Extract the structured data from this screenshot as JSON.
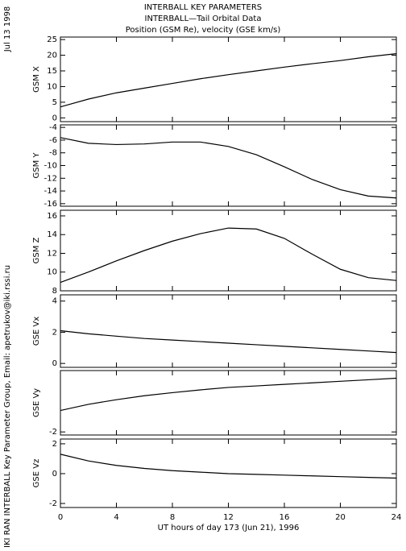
{
  "header": {
    "lines": [
      "INTERBALL KEY PARAMETERS",
      "INTERBALL—Tail Orbital Data",
      "Position (GSM Re), velocity (GSE km/s)"
    ]
  },
  "date_stamp": "Jul 13 1998",
  "credit": "IKI RAN INTERBALL Key Parameter Group, Email: apetrukov@iki.rssi.ru",
  "chart_data": [
    {
      "type": "line",
      "ylabel": "GSM X",
      "x": [
        0,
        2,
        4,
        6,
        8,
        10,
        12,
        14,
        16,
        18,
        20,
        22,
        24
      ],
      "series": [
        {
          "color": "#000000",
          "values": [
            3.5,
            6,
            8,
            9.5,
            11,
            12.5,
            13.8,
            15,
            16.2,
            17.3,
            18.3,
            19.5,
            20.5
          ]
        }
      ],
      "xlim": [
        0,
        24
      ],
      "xticks": [
        0,
        4,
        8,
        12,
        16,
        20,
        24
      ],
      "ylim": [
        -1.2,
        25.8
      ],
      "yticks": [
        0,
        5,
        10,
        15,
        20,
        25
      ]
    },
    {
      "type": "line",
      "ylabel": "GSM Y",
      "x": [
        0,
        2,
        4,
        6,
        8,
        10,
        12,
        14,
        16,
        18,
        20,
        22,
        24
      ],
      "series": [
        {
          "color": "#000000",
          "values": [
            -5.6,
            -6.5,
            -6.7,
            -6.6,
            -6.3,
            -6.3,
            -7,
            -8.3,
            -10.2,
            -12.2,
            -13.8,
            -14.8,
            -15.1
          ]
        }
      ],
      "xlim": [
        0,
        24
      ],
      "xticks": [
        0,
        4,
        8,
        12,
        16,
        20,
        24
      ],
      "ylim": [
        -16.4,
        -3.6
      ],
      "yticks": [
        -16,
        -14,
        -12,
        -10,
        -8,
        -6,
        -4
      ]
    },
    {
      "type": "line",
      "ylabel": "GSM Z",
      "x": [
        0,
        2,
        4,
        6,
        8,
        10,
        12,
        14,
        16,
        18,
        20,
        22,
        24
      ],
      "series": [
        {
          "color": "#000000",
          "values": [
            8.9,
            10,
            11.2,
            12.3,
            13.3,
            14.1,
            14.7,
            14.6,
            13.6,
            11.9,
            10.3,
            9.4,
            9.1
          ]
        }
      ],
      "xlim": [
        0,
        24
      ],
      "xticks": [
        0,
        4,
        8,
        12,
        16,
        20,
        24
      ],
      "ylim": [
        8,
        16.6
      ],
      "yticks": [
        8,
        10,
        12,
        14,
        16
      ]
    },
    {
      "type": "line",
      "ylabel": "GSE Vx",
      "x": [
        0,
        2,
        4,
        6,
        8,
        10,
        12,
        14,
        16,
        18,
        20,
        22,
        24
      ],
      "series": [
        {
          "color": "#000000",
          "values": [
            2.1,
            1.9,
            1.75,
            1.6,
            1.5,
            1.4,
            1.3,
            1.2,
            1.1,
            1.0,
            0.9,
            0.8,
            0.7
          ]
        }
      ],
      "xlim": [
        0,
        24
      ],
      "xticks": [
        0,
        4,
        8,
        12,
        16,
        20,
        24
      ],
      "ylim": [
        -0.25,
        4.4
      ],
      "yticks": [
        0,
        2,
        4
      ]
    },
    {
      "type": "line",
      "ylabel": "GSE Vy",
      "x": [
        0,
        2,
        4,
        6,
        8,
        10,
        12,
        14,
        16,
        18,
        20,
        22,
        24
      ],
      "series": [
        {
          "color": "#000000",
          "values": [
            -1.3,
            -1.1,
            -0.95,
            -0.82,
            -0.72,
            -0.63,
            -0.55,
            -0.5,
            -0.45,
            -0.4,
            -0.35,
            -0.3,
            -0.25
          ]
        }
      ],
      "xlim": [
        0,
        24
      ],
      "xticks": [
        0,
        4,
        8,
        12,
        16,
        20,
        24
      ],
      "ylim": [
        -2.1,
        0
      ],
      "yticks": [
        -2
      ]
    },
    {
      "type": "line",
      "ylabel": "GSE Vz",
      "xlabel": "UT hours of day 173 (Jun 21), 1996",
      "x": [
        0,
        2,
        4,
        6,
        8,
        10,
        12,
        14,
        16,
        18,
        20,
        22,
        24
      ],
      "series": [
        {
          "color": "#000000",
          "values": [
            1.3,
            0.85,
            0.55,
            0.35,
            0.2,
            0.1,
            0.0,
            -0.05,
            -0.1,
            -0.15,
            -0.2,
            -0.25,
            -0.3
          ]
        }
      ],
      "xlim": [
        0,
        24
      ],
      "xticks": [
        0,
        4,
        8,
        12,
        16,
        20,
        24
      ],
      "ylim": [
        -2.27,
        2.32
      ],
      "yticks": [
        -2,
        0,
        2
      ]
    }
  ]
}
